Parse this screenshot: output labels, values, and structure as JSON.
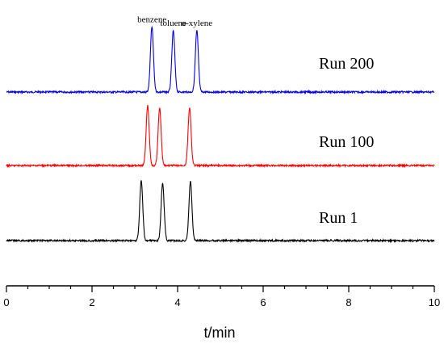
{
  "chart_data": {
    "type": "line",
    "xlabel": "t/min",
    "ylabel": "",
    "xlim": [
      0,
      10
    ],
    "xticks": [
      0,
      2,
      4,
      6,
      8,
      10
    ],
    "grid": false,
    "series": [
      {
        "name": "Run 200",
        "color": "#0000ff",
        "baseline": 3.0,
        "peaks": [
          {
            "t": 3.4,
            "height": 0.85,
            "label": "benzene"
          },
          {
            "t": 3.9,
            "height": 0.8,
            "label": "toluene"
          },
          {
            "t": 4.45,
            "height": 0.8,
            "label": "o-xylene"
          }
        ]
      },
      {
        "name": "Run 100",
        "color": "#ff0000",
        "baseline": 2.0,
        "peaks": [
          {
            "t": 3.3,
            "height": 0.78
          },
          {
            "t": 3.58,
            "height": 0.75
          },
          {
            "t": 4.28,
            "height": 0.75
          }
        ]
      },
      {
        "name": "Run 1",
        "color": "#000000",
        "baseline": 1.0,
        "peaks": [
          {
            "t": 3.15,
            "height": 0.78
          },
          {
            "t": 3.65,
            "height": 0.75
          },
          {
            "t": 4.3,
            "height": 0.77
          }
        ]
      }
    ]
  }
}
